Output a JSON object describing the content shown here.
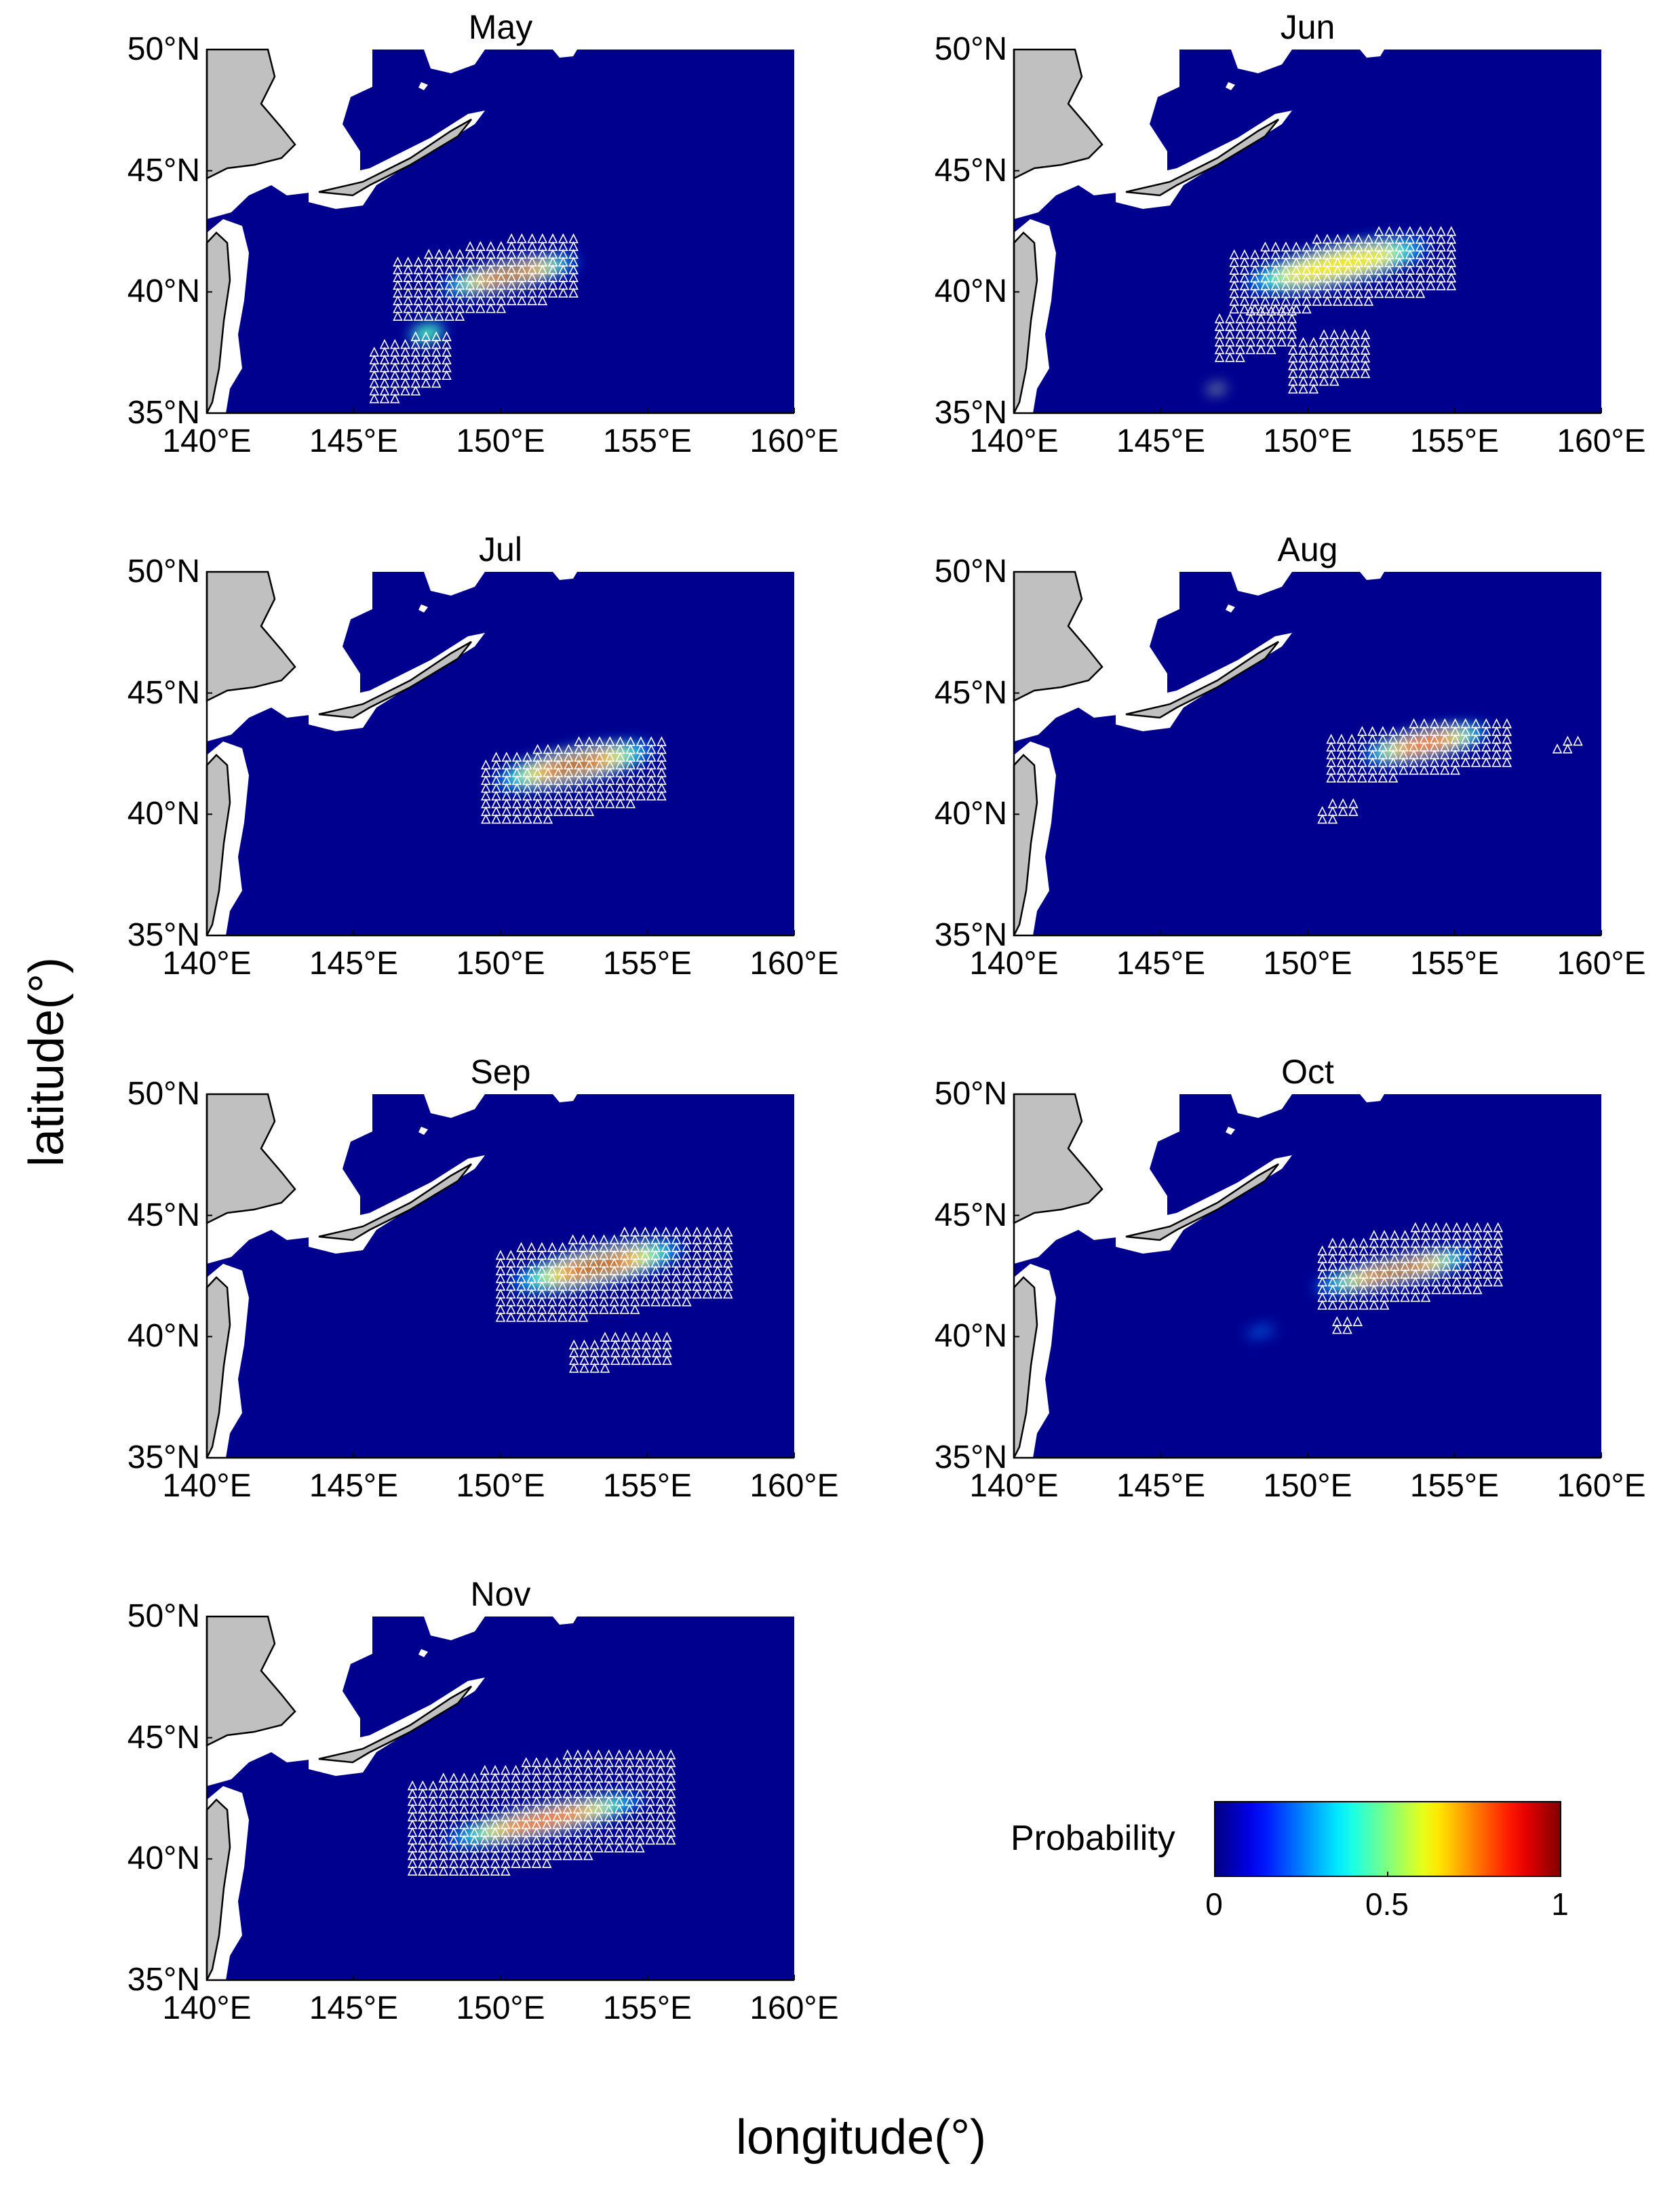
{
  "figure": {
    "xlabel": "longitude(°)",
    "ylabel": "latitude(°)"
  },
  "map": {
    "lon_range": [
      140,
      160
    ],
    "lat_range": [
      35,
      50
    ],
    "lon_ticks": [
      "140°E",
      "145°E",
      "150°E",
      "155°E",
      "160°E"
    ],
    "lat_ticks": [
      "50°N",
      "45°N",
      "40°N",
      "35°N"
    ],
    "ocean_color": "#00008f",
    "land_color": "#c0c0c0",
    "nodata_color": "#ffffff",
    "marker_symbol": "triangle",
    "marker_color": "#ffffff"
  },
  "colorbar": {
    "label": "Probability",
    "ticks": [
      "0",
      "0.5",
      "1"
    ],
    "colormap": "jet",
    "range": [
      0,
      1
    ]
  },
  "chart_data": {
    "type": "heatmap",
    "panels": [
      {
        "title": "May",
        "hotspots": [
          {
            "lon": 150.3,
            "lat": 40.7,
            "rlon": 2.4,
            "rlat": 0.55,
            "peak": 0.95
          },
          {
            "lon": 147.5,
            "lat": 38.3,
            "rlon": 0.6,
            "rlat": 0.4,
            "peak": 0.35
          }
        ],
        "markers": [
          {
            "lon0": 146.5,
            "lon1": 152.5,
            "lat0": 39.0,
            "lat1": 42.2
          },
          {
            "lon0": 145.7,
            "lon1": 148.3,
            "lat0": 35.6,
            "lat1": 38.4
          }
        ]
      },
      {
        "title": "Jun",
        "hotspots": [
          {
            "lon": 151.0,
            "lat": 41.1,
            "rlon": 3.2,
            "rlat": 0.8,
            "peak": 0.7
          },
          {
            "lon": 146.9,
            "lat": 36.0,
            "rlon": 0.35,
            "rlat": 0.15,
            "peak": 0.6
          }
        ],
        "markers": [
          {
            "lon0": 147.5,
            "lon1": 155.0,
            "lat0": 39.3,
            "lat1": 42.5
          },
          {
            "lon0": 147.0,
            "lon1": 149.5,
            "lat0": 37.3,
            "lat1": 39.5
          },
          {
            "lon0": 149.5,
            "lon1": 152.0,
            "lat0": 36.0,
            "lat1": 38.5
          }
        ]
      },
      {
        "title": "Jul",
        "hotspots": [
          {
            "lon": 152.5,
            "lat": 42.0,
            "rlon": 2.8,
            "rlat": 0.7,
            "peak": 0.95
          }
        ],
        "markers": [
          {
            "lon0": 149.5,
            "lon1": 155.5,
            "lat0": 39.8,
            "lat1": 43.2
          }
        ]
      },
      {
        "title": "Aug",
        "hotspots": [
          {
            "lon": 154.0,
            "lat": 42.9,
            "rlon": 2.2,
            "rlat": 0.6,
            "peak": 0.75
          }
        ],
        "markers": [
          {
            "lon0": 150.8,
            "lon1": 156.8,
            "lat0": 41.5,
            "lat1": 43.9
          },
          {
            "lon0": 150.5,
            "lon1": 151.8,
            "lat0": 39.8,
            "lat1": 40.6
          },
          {
            "lon0": 158.5,
            "lon1": 159.5,
            "lat0": 42.7,
            "lat1": 43.1
          }
        ]
      },
      {
        "title": "Sep",
        "hotspots": [
          {
            "lon": 153.3,
            "lat": 42.9,
            "rlon": 3.0,
            "rlat": 0.75,
            "peak": 0.95
          }
        ],
        "markers": [
          {
            "lon0": 150.0,
            "lon1": 158.0,
            "lat0": 40.8,
            "lat1": 44.5
          },
          {
            "lon0": 152.5,
            "lon1": 156.0,
            "lat0": 38.7,
            "lat1": 40.2
          }
        ]
      },
      {
        "title": "Oct",
        "hotspots": [
          {
            "lon": 153.0,
            "lat": 42.7,
            "rlon": 2.8,
            "rlat": 0.55,
            "peak": 0.95
          },
          {
            "lon": 148.4,
            "lat": 40.2,
            "rlon": 0.5,
            "rlat": 0.15,
            "peak": 0.3
          }
        ],
        "markers": [
          {
            "lon0": 150.5,
            "lon1": 156.8,
            "lat0": 41.3,
            "lat1": 44.7
          },
          {
            "lon0": 151.0,
            "lon1": 152.0,
            "lat0": 40.3,
            "lat1": 40.9
          }
        ]
      },
      {
        "title": "Nov",
        "hotspots": [
          {
            "lon": 151.5,
            "lat": 41.6,
            "rlon": 3.5,
            "rlat": 0.6,
            "peak": 0.9
          }
        ],
        "markers": [
          {
            "lon0": 147.0,
            "lon1": 156.0,
            "lat0": 39.5,
            "lat1": 44.4
          }
        ]
      }
    ]
  }
}
